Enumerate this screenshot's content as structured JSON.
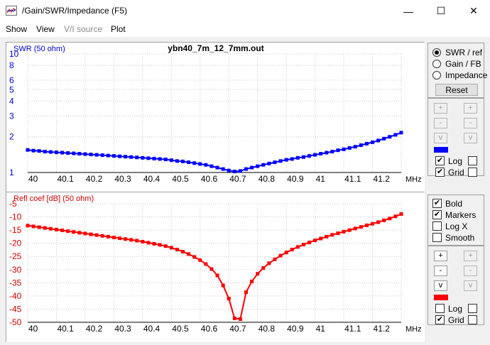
{
  "window": {
    "title": "/Gain/SWR/Impedance (F5)",
    "minimize_glyph": "—",
    "maximize_glyph": "☐",
    "close_glyph": "✕"
  },
  "menu": [
    "Show",
    "View",
    "V/I source",
    "Plot"
  ],
  "menu_disabled": [
    false,
    false,
    true,
    false
  ],
  "top_plot": {
    "title": "ybn40_7m_12_7mm.out",
    "ylabel": "SWR (50 ohm)",
    "xunit": "MHz",
    "color": "#0000ff",
    "y_ticks": [
      "10",
      "8",
      "6",
      "5",
      "4",
      "3",
      "2",
      "1"
    ]
  },
  "bottom_plot": {
    "ylabel": "Refl coef [dB] (50 ohm)",
    "xunit": "MHz",
    "color": "#ff0000",
    "y_ticks": [
      "-5",
      "-10",
      "-15",
      "-20",
      "-25",
      "-30",
      "-35",
      "-40",
      "-45",
      "-50"
    ]
  },
  "x_ticks": [
    "40",
    "40.1",
    "40.2",
    "40.3",
    "40.4",
    "40.5",
    "40.6",
    "40.7",
    "40.8",
    "40.9",
    "41",
    "41.1",
    "41.2"
  ],
  "chart_data": [
    {
      "type": "line",
      "title": "ybn40_7m_12_7mm.out",
      "xlabel": "MHz",
      "ylabel": "SWR (50 ohm)",
      "y_scale": "log",
      "xlim": [
        40,
        41.3
      ],
      "ylim": [
        1,
        10
      ],
      "grid": true,
      "markers": true,
      "series": [
        {
          "x": [
            40.0,
            40.02,
            40.04,
            40.06,
            40.08,
            40.1,
            40.12,
            40.14,
            40.16,
            40.18,
            40.2,
            40.22,
            40.24,
            40.26,
            40.28,
            40.3,
            40.32,
            40.34,
            40.36,
            40.38,
            40.4,
            40.42,
            40.44,
            40.46,
            40.48,
            40.5,
            40.52,
            40.54,
            40.56,
            40.58,
            40.6,
            40.62,
            40.64,
            40.66,
            40.68,
            40.7,
            40.72,
            40.74,
            40.76,
            40.78,
            40.8,
            40.82,
            40.84,
            40.86,
            40.88,
            40.9,
            40.92,
            40.94,
            40.96,
            40.98,
            41.0,
            41.02,
            41.04,
            41.06,
            41.08,
            41.1,
            41.12,
            41.14,
            41.16,
            41.18,
            41.2,
            41.22,
            41.24,
            41.26,
            41.28,
            41.3
          ],
          "values": [
            1.55,
            1.53,
            1.52,
            1.5,
            1.49,
            1.48,
            1.47,
            1.46,
            1.45,
            1.44,
            1.43,
            1.42,
            1.41,
            1.4,
            1.39,
            1.38,
            1.37,
            1.36,
            1.35,
            1.34,
            1.33,
            1.32,
            1.31,
            1.3,
            1.29,
            1.27,
            1.25,
            1.24,
            1.22,
            1.2,
            1.18,
            1.16,
            1.13,
            1.1,
            1.07,
            1.04,
            1.02,
            1.03,
            1.07,
            1.1,
            1.13,
            1.16,
            1.19,
            1.22,
            1.25,
            1.28,
            1.3,
            1.33,
            1.35,
            1.38,
            1.41,
            1.44,
            1.47,
            1.5,
            1.54,
            1.57,
            1.61,
            1.65,
            1.7,
            1.75,
            1.8,
            1.86,
            1.93,
            2.0,
            2.08,
            2.17
          ]
        }
      ]
    },
    {
      "type": "line",
      "title": "",
      "xlabel": "MHz",
      "ylabel": "Refl coef [dB] (50 ohm)",
      "xlim": [
        40,
        41.3
      ],
      "ylim": [
        -50,
        -5
      ],
      "grid": true,
      "markers": true,
      "series": [
        {
          "x": [
            40.0,
            40.02,
            40.04,
            40.06,
            40.08,
            40.1,
            40.12,
            40.14,
            40.16,
            40.18,
            40.2,
            40.22,
            40.24,
            40.26,
            40.28,
            40.3,
            40.32,
            40.34,
            40.36,
            40.38,
            40.4,
            40.42,
            40.44,
            40.46,
            40.48,
            40.5,
            40.52,
            40.54,
            40.56,
            40.58,
            40.6,
            40.62,
            40.64,
            40.66,
            40.68,
            40.7,
            40.72,
            40.74,
            40.76,
            40.78,
            40.8,
            40.82,
            40.84,
            40.86,
            40.88,
            40.9,
            40.92,
            40.94,
            40.96,
            40.98,
            41.0,
            41.02,
            41.04,
            41.06,
            41.08,
            41.1,
            41.12,
            41.14,
            41.16,
            41.18,
            41.2,
            41.22,
            41.24,
            41.26,
            41.28,
            41.3
          ],
          "values": [
            -13.3,
            -13.6,
            -13.9,
            -14.2,
            -14.5,
            -14.8,
            -15.1,
            -15.4,
            -15.7,
            -16.0,
            -16.3,
            -16.6,
            -16.9,
            -17.2,
            -17.5,
            -17.8,
            -18.1,
            -18.4,
            -18.7,
            -19.0,
            -19.4,
            -19.8,
            -20.2,
            -20.6,
            -21.1,
            -21.7,
            -22.4,
            -23.2,
            -24.1,
            -25.2,
            -26.4,
            -27.9,
            -29.8,
            -32.2,
            -36.0,
            -41.0,
            -48.5,
            -48.8,
            -38.6,
            -34.5,
            -31.6,
            -29.4,
            -27.6,
            -26.1,
            -24.7,
            -23.5,
            -22.4,
            -21.4,
            -20.5,
            -19.7,
            -18.9,
            -18.2,
            -17.5,
            -16.8,
            -16.2,
            -15.6,
            -15.0,
            -14.4,
            -13.8,
            -13.2,
            -12.6,
            -12.0,
            -11.3,
            -10.6,
            -9.8,
            -8.9
          ]
        }
      ]
    }
  ],
  "controls_top": {
    "radios": [
      "SWR / ref",
      "Gain / FB",
      "Impedance"
    ],
    "selected": 0,
    "reset_label": "Reset",
    "plus": "+",
    "minus": "-",
    "down": "v",
    "log_label": "Log",
    "grid_label": "Grid",
    "log_checked": true,
    "grid_checked": true,
    "swatch_color": "#0000ff"
  },
  "controls_bottom": {
    "checks": [
      "Bold",
      "Markers",
      "Log X",
      "Smooth"
    ],
    "checked": [
      true,
      true,
      false,
      false
    ],
    "plus": "+",
    "minus": "-",
    "down": "v",
    "log_label": "Log",
    "grid_label": "Grid",
    "log_checked": false,
    "grid_checked": true,
    "swatch_color": "#ff0000"
  }
}
